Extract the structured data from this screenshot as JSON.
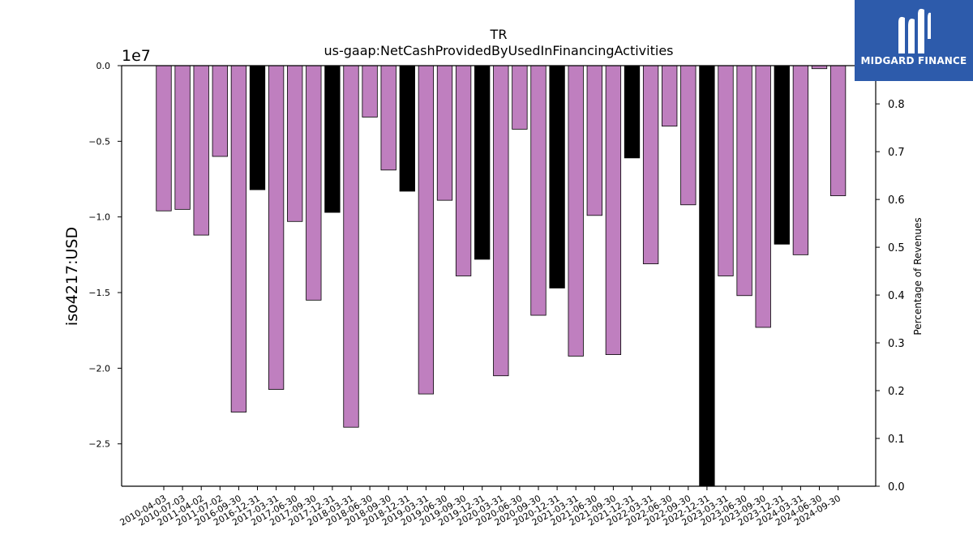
{
  "logo": {
    "text": "MIDGARD FINANCE",
    "icon": "midgard-logo-icon",
    "background": "#2d5bab"
  },
  "chart_data": {
    "type": "bar",
    "title": "TR",
    "subtitle": "us-gaap:NetCashProvidedByUsedInFinancingActivities",
    "ylabel": "iso4217:USD",
    "y2label": "Percentage of Revenues",
    "y_offset_label": "1e7",
    "ylim": [
      -2.78,
      0.0
    ],
    "y_ticks": [
      0.0,
      -0.5,
      -1.0,
      -1.5,
      -2.0,
      -2.5
    ],
    "y_tick_labels": [
      "0.0",
      "−0.5",
      "−1.0",
      "−1.5",
      "−2.0",
      "−2.5"
    ],
    "y2lim": [
      0.0,
      0.88
    ],
    "y2_ticks": [
      0.0,
      0.1,
      0.2,
      0.3,
      0.4,
      0.5,
      0.6,
      0.7,
      0.8
    ],
    "y2_tick_labels": [
      "0.0",
      "0.1",
      "0.2",
      "0.3",
      "0.4",
      "0.5",
      "0.6",
      "0.7",
      "0.8"
    ],
    "grid": false,
    "colors": {
      "default": "#bf7fbf",
      "highlight": "#000000",
      "edge": "#000000"
    },
    "categories": [
      "2010-04-03",
      "2010-07-03",
      "2011-04-02",
      "2011-07-02",
      "2016-09-30",
      "2016-12-31",
      "2017-03-31",
      "2017-06-30",
      "2017-09-30",
      "2017-12-31",
      "2018-03-31",
      "2018-06-30",
      "2018-09-30",
      "2018-12-31",
      "2019-03-31",
      "2019-06-30",
      "2019-09-30",
      "2019-12-31",
      "2020-03-31",
      "2020-06-30",
      "2020-09-30",
      "2020-12-31",
      "2021-03-31",
      "2021-06-30",
      "2021-09-30",
      "2021-12-31",
      "2022-03-31",
      "2022-06-30",
      "2022-09-30",
      "2022-12-31",
      "2023-03-31",
      "2023-06-30",
      "2023-09-30",
      "2023-12-31",
      "2024-03-31",
      "2024-06-30",
      "2024-09-30"
    ],
    "values": [
      -0.96,
      -0.95,
      -1.12,
      -0.6,
      -2.29,
      -0.82,
      -2.14,
      -1.03,
      -1.55,
      -0.97,
      -2.39,
      -0.34,
      -0.69,
      -0.83,
      -2.17,
      -0.89,
      -1.39,
      -1.28,
      -2.05,
      -0.42,
      -1.65,
      -1.47,
      -1.92,
      -0.99,
      -1.91,
      -0.61,
      -1.31,
      -0.4,
      -0.92,
      -2.78,
      -1.39,
      -1.52,
      -1.73,
      -1.18,
      -1.25,
      -0.02,
      -0.86
    ],
    "highlight": [
      false,
      false,
      false,
      false,
      false,
      true,
      false,
      false,
      false,
      true,
      false,
      false,
      false,
      true,
      false,
      false,
      false,
      true,
      false,
      false,
      false,
      true,
      false,
      false,
      false,
      true,
      false,
      false,
      false,
      true,
      false,
      false,
      false,
      true,
      false,
      false,
      false
    ]
  }
}
